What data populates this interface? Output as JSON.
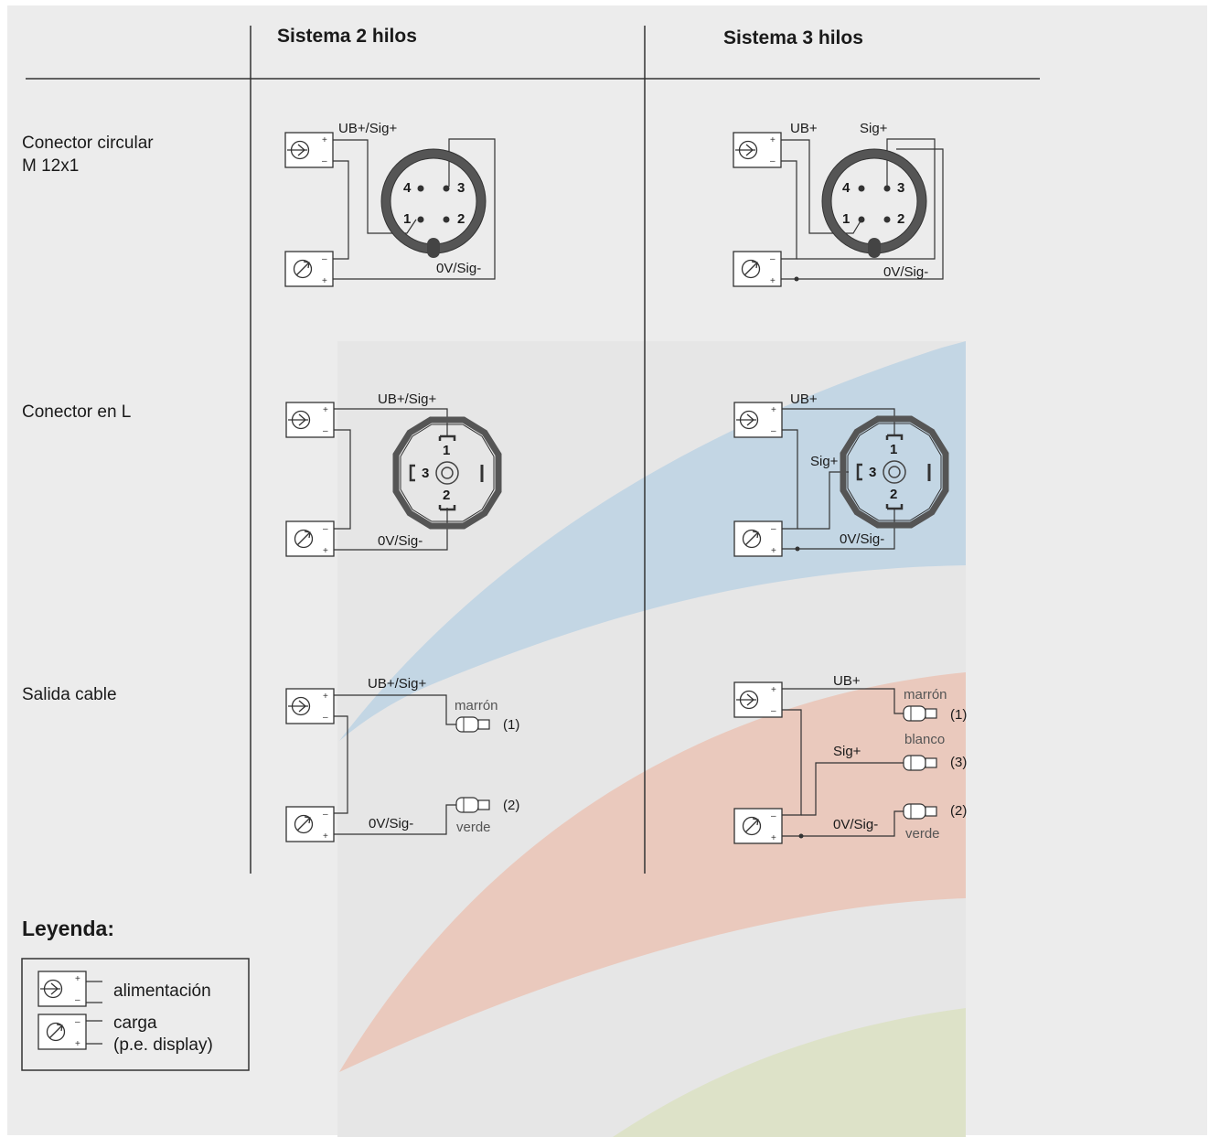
{
  "headers": {
    "col2": "Sistema 2 hilos",
    "col3": "Sistema 3 hilos"
  },
  "rows": {
    "circular_line1": "Conector circular",
    "circular_line2": "M 12x1",
    "l_connector": "Conector en L",
    "cable": "Salida cable"
  },
  "circular_2w": {
    "top": "UB+/Sig+",
    "bottom": "0V/Sig-",
    "pin4": "4",
    "pin3": "3",
    "pin1": "1",
    "pin2": "2"
  },
  "circular_3w": {
    "ub": "UB+",
    "sig": "Sig+",
    "bottom": "0V/Sig-",
    "pin4": "4",
    "pin3": "3",
    "pin1": "1",
    "pin2": "2"
  },
  "l_2w": {
    "top": "UB+/Sig+",
    "bottom": "0V/Sig-",
    "pin1": "1",
    "pin2": "2",
    "pin3": "3"
  },
  "l_3w": {
    "ub": "UB+",
    "sig": "Sig+",
    "bottom": "0V/Sig-",
    "pin1": "1",
    "pin2": "2",
    "pin3": "3"
  },
  "cable_2w": {
    "top": "UB+/Sig+",
    "bottom": "0V/Sig-",
    "brown": "marrón",
    "green": "verde",
    "n1": "(1)",
    "n2": "(2)"
  },
  "cable_3w": {
    "ub": "UB+",
    "sig": "Sig+",
    "bottom": "0V/Sig-",
    "brown": "marrón",
    "white": "blanco",
    "green": "verde",
    "n1": "(1)",
    "n3": "(3)",
    "n2": "(2)"
  },
  "legend": {
    "title": "Leyenda:",
    "supply": "alimentación",
    "load_line1": "carga",
    "load_line2": "(p.e. display)"
  },
  "colors": {
    "panel": "#ececec",
    "blue_band": "#c3d6e4",
    "red_band": "#eac9bd",
    "green_band": "#dde2c8",
    "line": "#333333"
  }
}
